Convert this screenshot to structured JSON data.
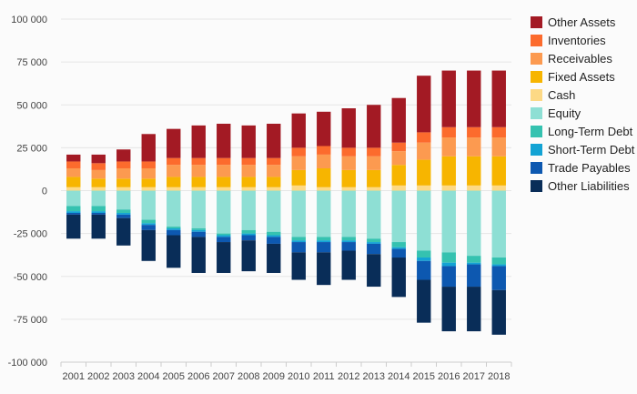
{
  "chart_data": {
    "type": "bar",
    "stacked": true,
    "diverging": true,
    "title": "",
    "xlabel": "",
    "ylabel": "",
    "ylim": [
      -100000,
      100000
    ],
    "yticks": [
      100000,
      75000,
      50000,
      25000,
      0,
      -25000,
      -50000,
      -75000,
      -100000
    ],
    "ytick_labels": [
      "100 000",
      "75 000",
      "50 000",
      "25 000",
      "0",
      "-25 000",
      "-50 000",
      "-75 000",
      "-100 000"
    ],
    "grid": true,
    "legend_position": "right",
    "categories": [
      "2001",
      "2002",
      "2003",
      "2004",
      "2005",
      "2006",
      "2007",
      "2008",
      "2009",
      "2010",
      "2011",
      "2012",
      "2013",
      "2014",
      "2015",
      "2016",
      "2017",
      "2018"
    ],
    "assets": [
      {
        "name": "Cash",
        "color": "#fdd985",
        "values": [
          2000,
          2000,
          2000,
          2000,
          2000,
          2000,
          2000,
          2000,
          2000,
          3000,
          2000,
          2000,
          2000,
          3000,
          3000,
          3000,
          3000,
          3000
        ]
      },
      {
        "name": "Fixed Assets",
        "color": "#f7b500",
        "values": [
          6000,
          5000,
          5000,
          5000,
          6000,
          6000,
          6000,
          6000,
          6000,
          9000,
          11000,
          10000,
          10000,
          12000,
          15000,
          17000,
          17000,
          17000
        ]
      },
      {
        "name": "Receivables",
        "color": "#fc9a50",
        "values": [
          5000,
          5000,
          6000,
          6000,
          7000,
          7000,
          7000,
          7000,
          7000,
          8000,
          8000,
          8000,
          8000,
          8000,
          10000,
          11000,
          11000,
          11000
        ]
      },
      {
        "name": "Inventories",
        "color": "#fc6b2d",
        "values": [
          4000,
          4000,
          4000,
          4000,
          4000,
          4000,
          4000,
          4000,
          4000,
          5000,
          5000,
          5000,
          5000,
          5000,
          6000,
          6000,
          6000,
          6000
        ]
      },
      {
        "name": "Other Assets",
        "color": "#a31a24",
        "values": [
          4000,
          5000,
          7000,
          16000,
          17000,
          19000,
          20000,
          19000,
          20000,
          20000,
          20000,
          23000,
          25000,
          26000,
          33000,
          33000,
          33000,
          33000
        ]
      }
    ],
    "liabilities": [
      {
        "name": "Equity",
        "color": "#8edfd4",
        "values": [
          -9000,
          -9000,
          -11000,
          -17000,
          -21000,
          -22000,
          -25000,
          -23000,
          -24000,
          -27000,
          -27000,
          -27000,
          -28000,
          -30000,
          -35000,
          -36000,
          -38000,
          -39000
        ]
      },
      {
        "name": "Long-Term Debt",
        "color": "#35c2b0",
        "values": [
          -3000,
          -3000,
          -2000,
          -2000,
          -1000,
          -1000,
          -1000,
          -2000,
          -2000,
          -2000,
          -2000,
          -2000,
          -2000,
          -3000,
          -4000,
          -6000,
          -4000,
          -4000
        ]
      },
      {
        "name": "Short-Term Debt",
        "color": "#13a3d4",
        "values": [
          -1000,
          -1000,
          -1000,
          -1000,
          -1000,
          -1000,
          -1000,
          -1000,
          -1000,
          -1000,
          -1000,
          -1000,
          -1000,
          -1000,
          -2000,
          -2000,
          -1000,
          -1000
        ]
      },
      {
        "name": "Trade Payables",
        "color": "#0d58b0",
        "values": [
          -1000,
          -1000,
          -2000,
          -3000,
          -3000,
          -3000,
          -3000,
          -3000,
          -4000,
          -6000,
          -6000,
          -5000,
          -6000,
          -5000,
          -11000,
          -12000,
          -13000,
          -14000
        ]
      },
      {
        "name": "Other Liabilities",
        "color": "#092d58",
        "values": [
          -14000,
          -14000,
          -16000,
          -18000,
          -19000,
          -21000,
          -18000,
          -18000,
          -17000,
          -16000,
          -19000,
          -17000,
          -19000,
          -23000,
          -25000,
          -26000,
          -26000,
          -26000
        ]
      }
    ],
    "legend": [
      {
        "label": "Other Assets",
        "color": "#a31a24"
      },
      {
        "label": "Inventories",
        "color": "#fc6b2d"
      },
      {
        "label": "Receivables",
        "color": "#fc9a50"
      },
      {
        "label": "Fixed Assets",
        "color": "#f7b500"
      },
      {
        "label": "Cash",
        "color": "#fdd985"
      },
      {
        "label": "Equity",
        "color": "#8edfd4"
      },
      {
        "label": "Long-Term Debt",
        "color": "#35c2b0"
      },
      {
        "label": "Short-Term Debt",
        "color": "#13a3d4"
      },
      {
        "label": "Trade Payables",
        "color": "#0d58b0"
      },
      {
        "label": "Other Liabilities",
        "color": "#092d58"
      }
    ]
  }
}
